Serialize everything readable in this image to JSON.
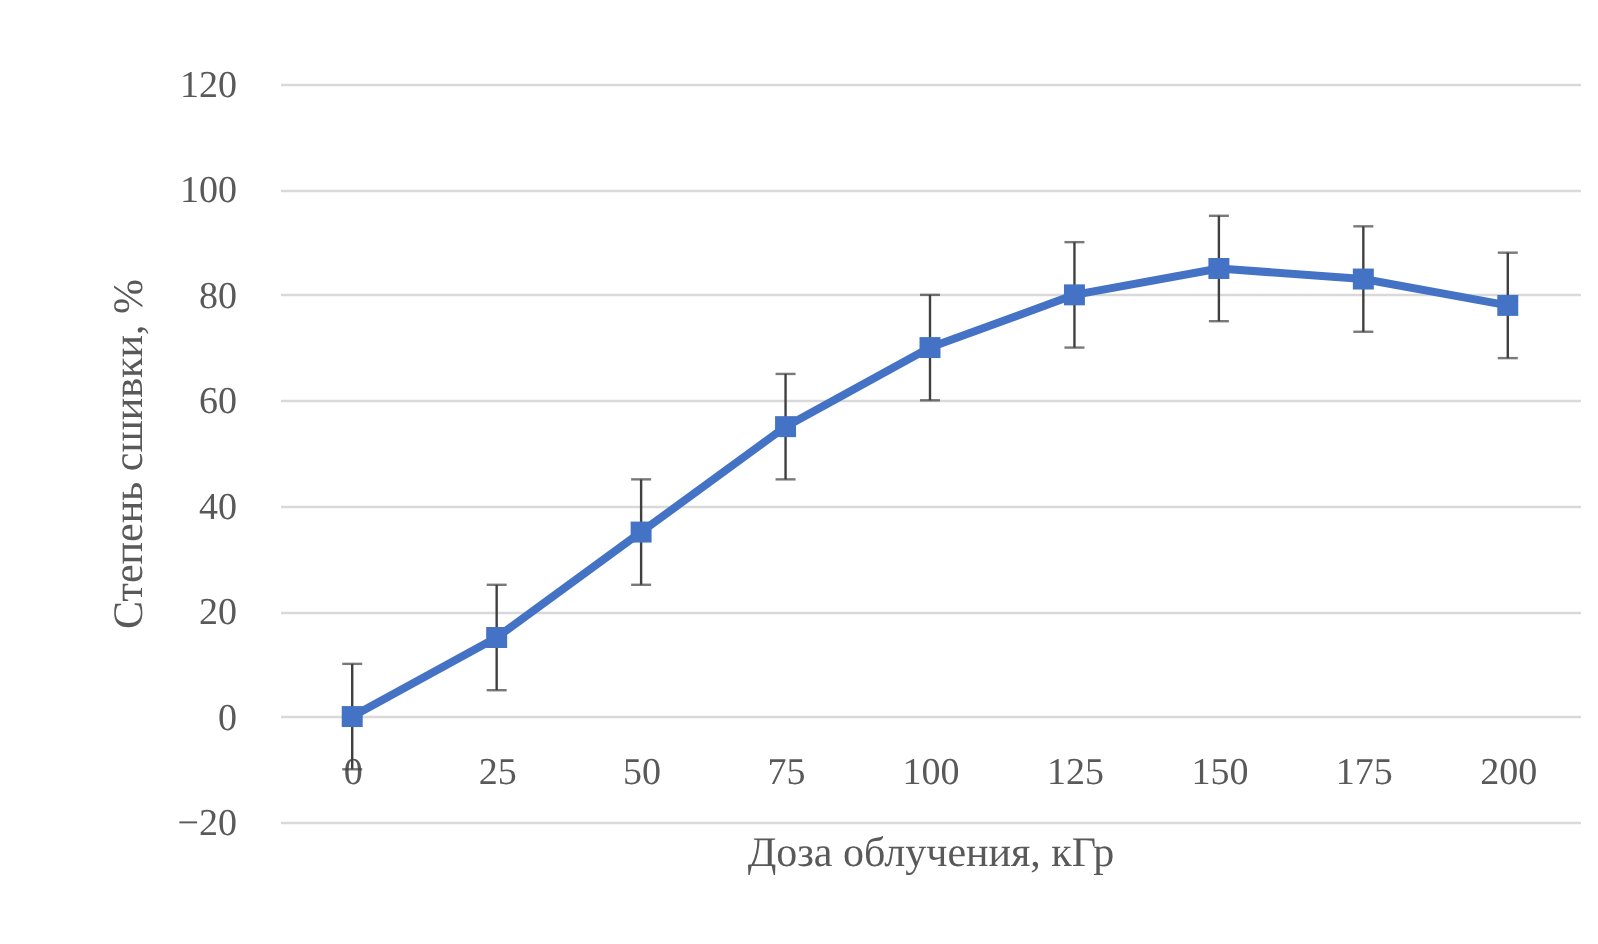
{
  "chart_data": {
    "type": "line",
    "xlabel": "Доза облучения, кГр",
    "ylabel": "Степень сшивки, %",
    "categories": [
      "0",
      "25",
      "50",
      "75",
      "100",
      "125",
      "150",
      "175",
      "200"
    ],
    "series": [
      {
        "color": "#4472c4",
        "values": [
          0,
          15,
          35,
          55,
          70,
          80,
          85,
          83,
          78
        ],
        "errors": [
          10,
          10,
          10,
          10,
          10,
          10,
          10,
          10,
          10
        ]
      }
    ],
    "ylim": [
      -20,
      120
    ],
    "yticks": [
      -20,
      0,
      20,
      40,
      60,
      80,
      100,
      120
    ],
    "grid": "y",
    "marker": "square",
    "line_style": "solid"
  }
}
